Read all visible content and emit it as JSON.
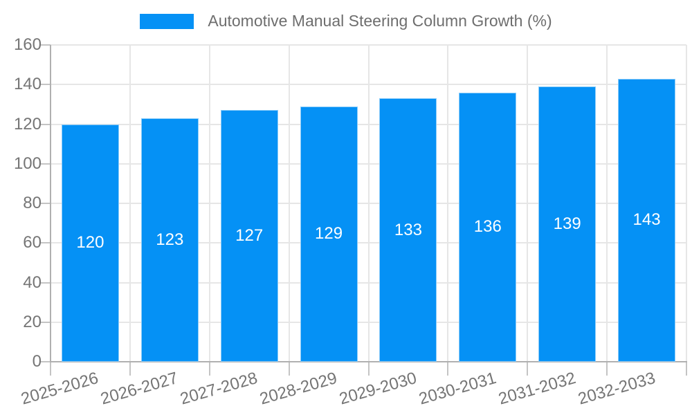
{
  "chart_data": {
    "type": "bar",
    "title": "Automotive Manual Steering Column Growth (%)",
    "categories": [
      "2025-2026",
      "2026-2027",
      "2027-2028",
      "2028-2029",
      "2029-2030",
      "2030-2031",
      "2031-2032",
      "2032-2033"
    ],
    "values": [
      120,
      123,
      127,
      129,
      133,
      136,
      139,
      143
    ],
    "value_labels": [
      "120",
      "123",
      "127",
      "129",
      "133",
      "136",
      "139",
      "143"
    ],
    "xlabel": "",
    "ylabel": "",
    "ylim": [
      0,
      160
    ],
    "yticks": [
      0,
      20,
      40,
      60,
      80,
      100,
      120,
      140,
      160
    ],
    "grid": "on",
    "legend_position": "top-center",
    "legend": {
      "label": "Automotive Manual Steering Column Growth (%)",
      "swatch_color": "#0591f5"
    },
    "colors": {
      "bar_fill": "#0591f5",
      "bar_edge": "#8ecdf9",
      "value_label": "#ffffff",
      "axis_text": "#757575",
      "legend_text": "#6e6e6e",
      "gridline": "#e6e6e6",
      "axis_line": "#b0b0b0",
      "tick": "#c4c4c4",
      "background": "#ffffff"
    }
  }
}
